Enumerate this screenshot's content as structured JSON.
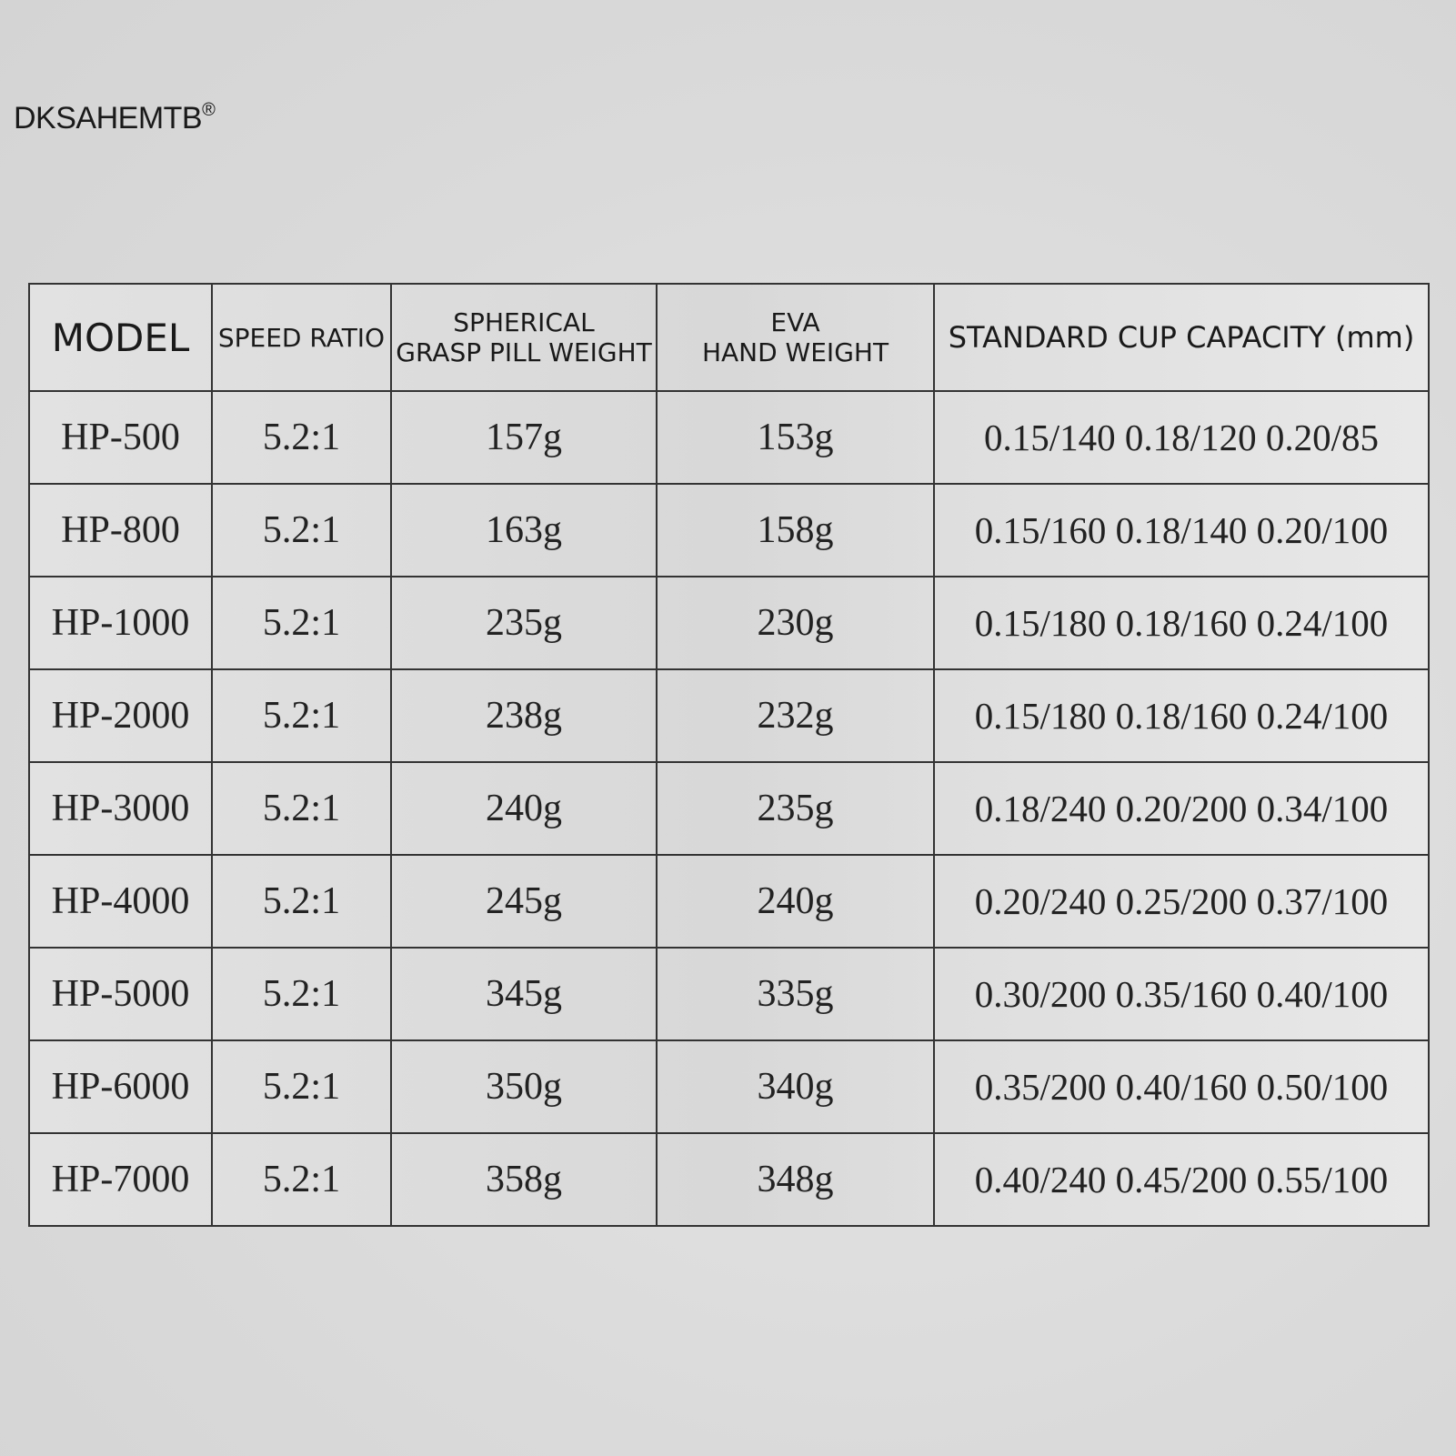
{
  "header": {
    "brand": "DKSAHEMTB",
    "brand_mark": "®"
  },
  "table": {
    "columns": [
      [
        "MODEL"
      ],
      [
        "SPEED RATIO"
      ],
      [
        "SPHERICAL",
        "GRASP PILL WEIGHT"
      ],
      [
        "EVA",
        "HAND WEIGHT"
      ],
      [
        "STANDARD CUP CAPACITY (mm)"
      ]
    ],
    "rows": [
      [
        "HP-500",
        "5.2:1",
        "157g",
        "153g",
        "0.15/140 0.18/120 0.20/85"
      ],
      [
        "HP-800",
        "5.2:1",
        "163g",
        "158g",
        "0.15/160 0.18/140 0.20/100"
      ],
      [
        "HP-1000",
        "5.2:1",
        "235g",
        "230g",
        "0.15/180 0.18/160 0.24/100"
      ],
      [
        "HP-2000",
        "5.2:1",
        "238g",
        "232g",
        "0.15/180 0.18/160 0.24/100"
      ],
      [
        "HP-3000",
        "5.2:1",
        "240g",
        "235g",
        "0.18/240 0.20/200 0.34/100"
      ],
      [
        "HP-4000",
        "5.2:1",
        "245g",
        "240g",
        "0.20/240 0.25/200 0.37/100"
      ],
      [
        "HP-5000",
        "5.2:1",
        "345g",
        "335g",
        "0.30/200 0.35/160 0.40/100"
      ],
      [
        "HP-6000",
        "5.2:1",
        "350g",
        "340g",
        "0.35/200 0.40/160 0.50/100"
      ],
      [
        "HP-7000",
        "5.2:1",
        "358g",
        "348g",
        "0.40/240 0.45/200 0.55/100"
      ]
    ]
  }
}
